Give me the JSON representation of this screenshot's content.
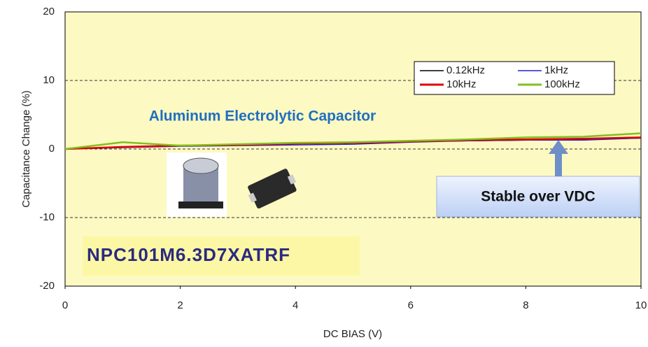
{
  "chart_data": {
    "type": "line",
    "x": [
      0,
      1,
      2,
      3,
      4,
      5,
      6,
      7,
      8,
      9,
      10
    ],
    "series": [
      {
        "name": "0.12kHz",
        "color": "#000000",
        "values": [
          0,
          0.3,
          0.5,
          0.6,
          0.8,
          0.9,
          1.1,
          1.2,
          1.3,
          1.4,
          1.6
        ]
      },
      {
        "name": "1kHz",
        "color": "#2020d0",
        "values": [
          0,
          0.2,
          0.4,
          0.5,
          0.6,
          0.7,
          1.0,
          1.2,
          1.3,
          1.3,
          1.6
        ]
      },
      {
        "name": "10kHz",
        "color": "#e00000",
        "values": [
          0,
          0.3,
          0.5,
          0.6,
          0.8,
          0.9,
          1.1,
          1.3,
          1.4,
          1.5,
          1.7
        ]
      },
      {
        "name": "100kHz",
        "color": "#80c020",
        "values": [
          0,
          1.0,
          0.5,
          0.7,
          0.9,
          1.0,
          1.2,
          1.4,
          1.7,
          1.8,
          2.3
        ]
      }
    ],
    "xlabel": "DC BIAS (V)",
    "ylabel": "Capacitance Change (%)",
    "xlim": [
      0,
      10
    ],
    "xticks": [
      0,
      2,
      4,
      6,
      8,
      10
    ],
    "ylim": [
      -20,
      20
    ],
    "yticks": [
      20,
      10,
      0,
      -10,
      -20
    ],
    "grid": true,
    "annotations": [
      "Aluminum Electrolytic Capacitor",
      "Stable over VDC",
      "NPC101M6.3D7XATRF"
    ]
  }
}
